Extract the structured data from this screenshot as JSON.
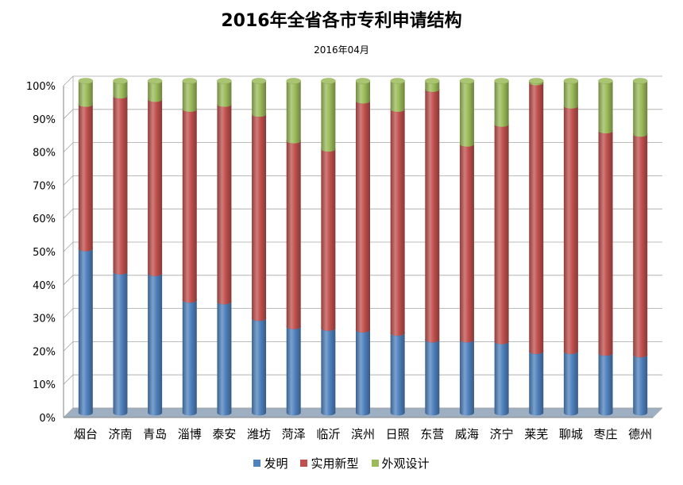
{
  "chart_data": {
    "type": "bar",
    "stacked": true,
    "title": "2016年全省各市专利申请结构",
    "subtitle": "2016年04月",
    "categories": [
      "烟台",
      "济南",
      "青岛",
      "淄博",
      "泰安",
      "潍坊",
      "菏泽",
      "临沂",
      "滨州",
      "日照",
      "东营",
      "威海",
      "济宁",
      "莱芜",
      "聊城",
      "枣庄",
      "德州"
    ],
    "ylim": [
      0,
      100
    ],
    "yticks": [
      "0%",
      "10%",
      "20%",
      "30%",
      "40%",
      "50%",
      "60%",
      "70%",
      "80%",
      "90%",
      "100%"
    ],
    "grid": true,
    "legend_position": "bottom",
    "series": [
      {
        "name": "发明",
        "color": "#4F81BD",
        "values": [
          49.5,
          42.5,
          42,
          34,
          33.5,
          28.5,
          26,
          25.5,
          25,
          24,
          22,
          22,
          21.5,
          18.5,
          18.5,
          18,
          17.5
        ]
      },
      {
        "name": "实用新型",
        "color": "#C0504D",
        "values": [
          43.5,
          53,
          52.5,
          57.5,
          59.5,
          61.5,
          56,
          54,
          69,
          67.5,
          75.5,
          59,
          65.5,
          81,
          74,
          67,
          66.5
        ]
      },
      {
        "name": "外观设计",
        "color": "#9BBB59",
        "values": [
          7,
          4.5,
          5.5,
          8.5,
          7,
          10,
          18,
          20.5,
          6,
          8.5,
          2.5,
          19,
          13,
          0.5,
          7.5,
          15,
          16
        ]
      }
    ]
  }
}
